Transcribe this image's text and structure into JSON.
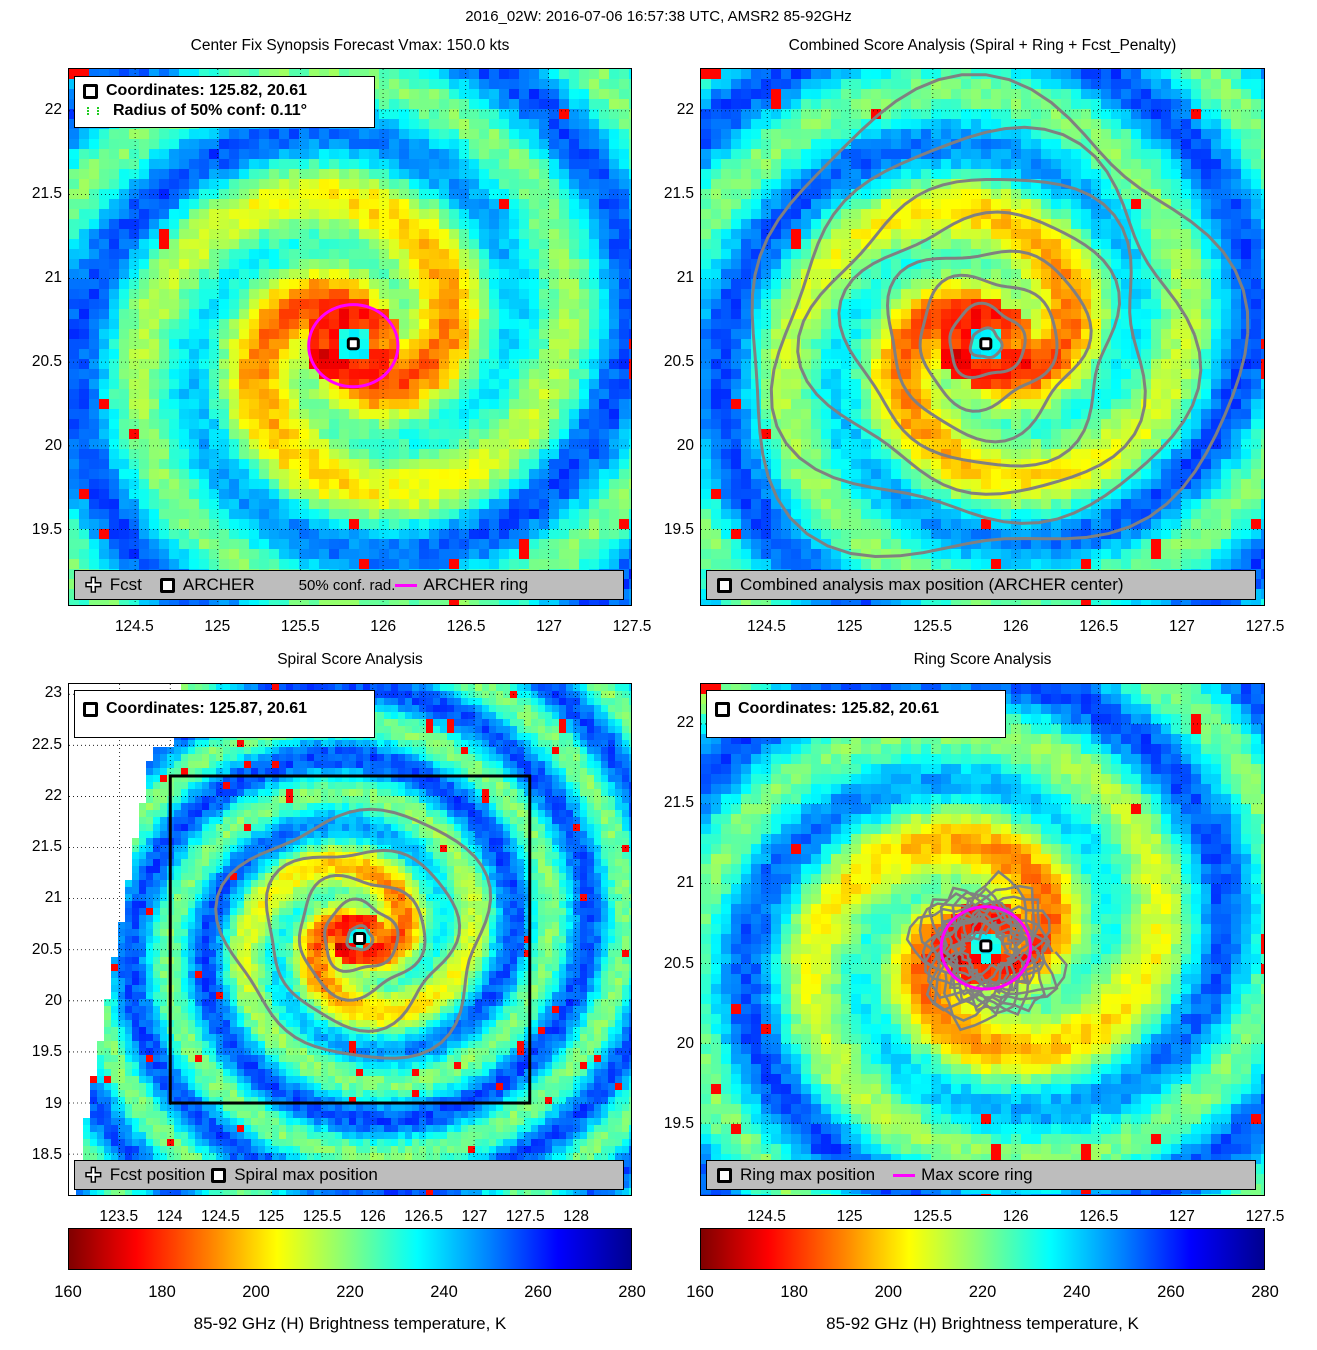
{
  "supertitle": "2016_02W: 2016-07-06 16:57:38 UTC, AMSR2 85-92GHz",
  "colors": {
    "storm_ring": "#ff00ff",
    "contour": "#808080",
    "marker_fill": "#ffffff",
    "legend_bg": "#bdbdbd"
  },
  "panels": {
    "synopsis": {
      "title": "Center Fix Synopsis     Forecast Vmax: 150.0 kts",
      "legend_top": [
        "Coordinates: 125.82, 20.61",
        "Radius of 50% conf: 0.11°"
      ],
      "legend_bottom": [
        "Fcst",
        "ARCHER",
        "50% conf. rad.",
        "ARCHER ring"
      ]
    },
    "combined": {
      "title": "Combined Score Analysis (Spiral + Ring + Fcst_Penalty)",
      "legend_bottom": [
        "Combined analysis max position (ARCHER center)"
      ]
    },
    "spiral": {
      "title": "Spiral Score Analysis",
      "legend_top": [
        "Coordinates: 125.87, 20.61"
      ],
      "legend_bottom": [
        "Fcst position",
        "Spiral max position"
      ]
    },
    "ring": {
      "title": "Ring Score Analysis",
      "legend_top": [
        "Coordinates: 125.82, 20.61"
      ],
      "legend_bottom": [
        "Ring max position",
        "Max score ring"
      ]
    }
  },
  "colorbar": {
    "ticks": [
      "160",
      "180",
      "200",
      "220",
      "240",
      "260",
      "280"
    ],
    "label": "85-92 GHz (H) Brightness temperature, K"
  },
  "chart_data": [
    {
      "type": "heatmap",
      "panel": "Center Fix Synopsis",
      "title": "Center Fix Synopsis     Forecast Vmax: 150.0 kts",
      "xlim": [
        124.1,
        127.5
      ],
      "ylim": [
        19.05,
        22.25
      ],
      "x_ticks": [
        "124.5",
        "125",
        "125.5",
        "126",
        "126.5",
        "127",
        "127.5"
      ],
      "y_ticks": [
        "19.5",
        "20",
        "20.5",
        "21",
        "21.5",
        "22"
      ],
      "center": {
        "lon": 125.82,
        "lat": 20.61
      },
      "conf_radius_deg": 0.11,
      "ring_radius_deg": 0.27
    },
    {
      "type": "heatmap",
      "panel": "Combined Score Analysis",
      "title": "Combined Score Analysis (Spiral + Ring + Fcst_Penalty)",
      "xlim": [
        124.1,
        127.5
      ],
      "ylim": [
        19.05,
        22.25
      ],
      "x_ticks": [
        "124.5",
        "125",
        "125.5",
        "126",
        "126.5",
        "127",
        "127.5"
      ],
      "y_ticks": [
        "19.5",
        "20",
        "20.5",
        "21",
        "21.5",
        "22"
      ],
      "center": {
        "lon": 125.82,
        "lat": 20.61
      }
    },
    {
      "type": "heatmap",
      "panel": "Spiral Score Analysis",
      "title": "Spiral Score Analysis",
      "xlim": [
        123.0,
        128.55
      ],
      "ylim": [
        18.1,
        23.1
      ],
      "x_ticks": [
        "123.5",
        "124",
        "124.5",
        "125",
        "125.5",
        "126",
        "126.5",
        "127",
        "127.5",
        "128"
      ],
      "y_ticks": [
        "18.5",
        "19",
        "19.5",
        "20",
        "20.5",
        "21",
        "21.5",
        "22",
        "22.5",
        "23"
      ],
      "center": {
        "lon": 125.87,
        "lat": 20.61
      },
      "box": {
        "lon": [
          124.0,
          127.55
        ],
        "lat": [
          19.0,
          22.2
        ]
      }
    },
    {
      "type": "heatmap",
      "panel": "Ring Score Analysis",
      "title": "Ring Score Analysis",
      "xlim": [
        124.1,
        127.5
      ],
      "ylim": [
        19.05,
        22.25
      ],
      "x_ticks": [
        "124.5",
        "125",
        "125.5",
        "126",
        "126.5",
        "127",
        "127.5"
      ],
      "y_ticks": [
        "19.5",
        "20",
        "20.5",
        "21",
        "21.5",
        "22"
      ],
      "center": {
        "lon": 125.82,
        "lat": 20.61
      },
      "ring_radius_deg": 0.27
    }
  ]
}
